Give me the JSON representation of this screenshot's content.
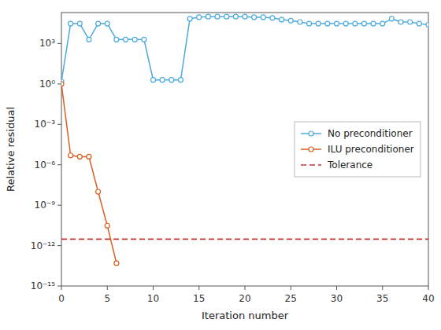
{
  "chart_data": {
    "type": "line",
    "xlabel": "Iteration number",
    "ylabel": "Relative residual",
    "log": "y",
    "grid": false,
    "legend": "right",
    "xlim": [
      0,
      40
    ],
    "ylim": [
      1e-15,
      200000.0
    ],
    "xticks": [
      0,
      5,
      10,
      15,
      20,
      25,
      30,
      35,
      40
    ],
    "yticks": [
      {
        "value": 1e-15,
        "label": "10⁻¹⁵"
      },
      {
        "value": 1e-12,
        "label": "10⁻¹²"
      },
      {
        "value": 1e-09,
        "label": "10⁻⁹"
      },
      {
        "value": 1e-06,
        "label": "10⁻⁶"
      },
      {
        "value": 0.001,
        "label": "10⁻³"
      },
      {
        "value": 1,
        "label": "10⁰"
      },
      {
        "value": 1000.0,
        "label": "10³"
      }
    ],
    "series": [
      {
        "name": "No preconditioner",
        "color": "#4DAADF",
        "marker": "circle",
        "line_style": "solid",
        "x": [
          0,
          1,
          2,
          3,
          4,
          5,
          6,
          7,
          8,
          9,
          10,
          11,
          12,
          13,
          14,
          15,
          16,
          17,
          18,
          19,
          20,
          21,
          22,
          23,
          24,
          25,
          26,
          27,
          28,
          29,
          30,
          31,
          32,
          33,
          34,
          35,
          36,
          37,
          38,
          39,
          40
        ],
        "values": [
          1.5,
          30000.0,
          30000.0,
          2000.0,
          30000.0,
          30000.0,
          2000.0,
          2000.0,
          2000.0,
          2000.0,
          2.0,
          2.0,
          2.0,
          2.0,
          70000.0,
          90000.0,
          100000.0,
          100000.0,
          100000.0,
          100000.0,
          100000.0,
          90000.0,
          90000.0,
          80000.0,
          60000.0,
          50000.0,
          40000.0,
          30000.0,
          30000.0,
          30000.0,
          30000.0,
          30000.0,
          30000.0,
          30000.0,
          30000.0,
          30000.0,
          70000.0,
          40000.0,
          40000.0,
          30000.0,
          25000.0
        ]
      },
      {
        "name": "ILU preconditioner",
        "color": "#D95F20",
        "marker": "circle",
        "line_style": "solid",
        "x": [
          0,
          1,
          2,
          3,
          4,
          5,
          6
        ],
        "values": [
          1.0,
          5e-06,
          4e-06,
          4e-06,
          1e-08,
          3e-11,
          5e-14
        ]
      },
      {
        "name": "Tolerance",
        "type": "hline",
        "color": "#CC3333",
        "line_style": "dashed",
        "values": [
          3e-12
        ]
      }
    ]
  }
}
